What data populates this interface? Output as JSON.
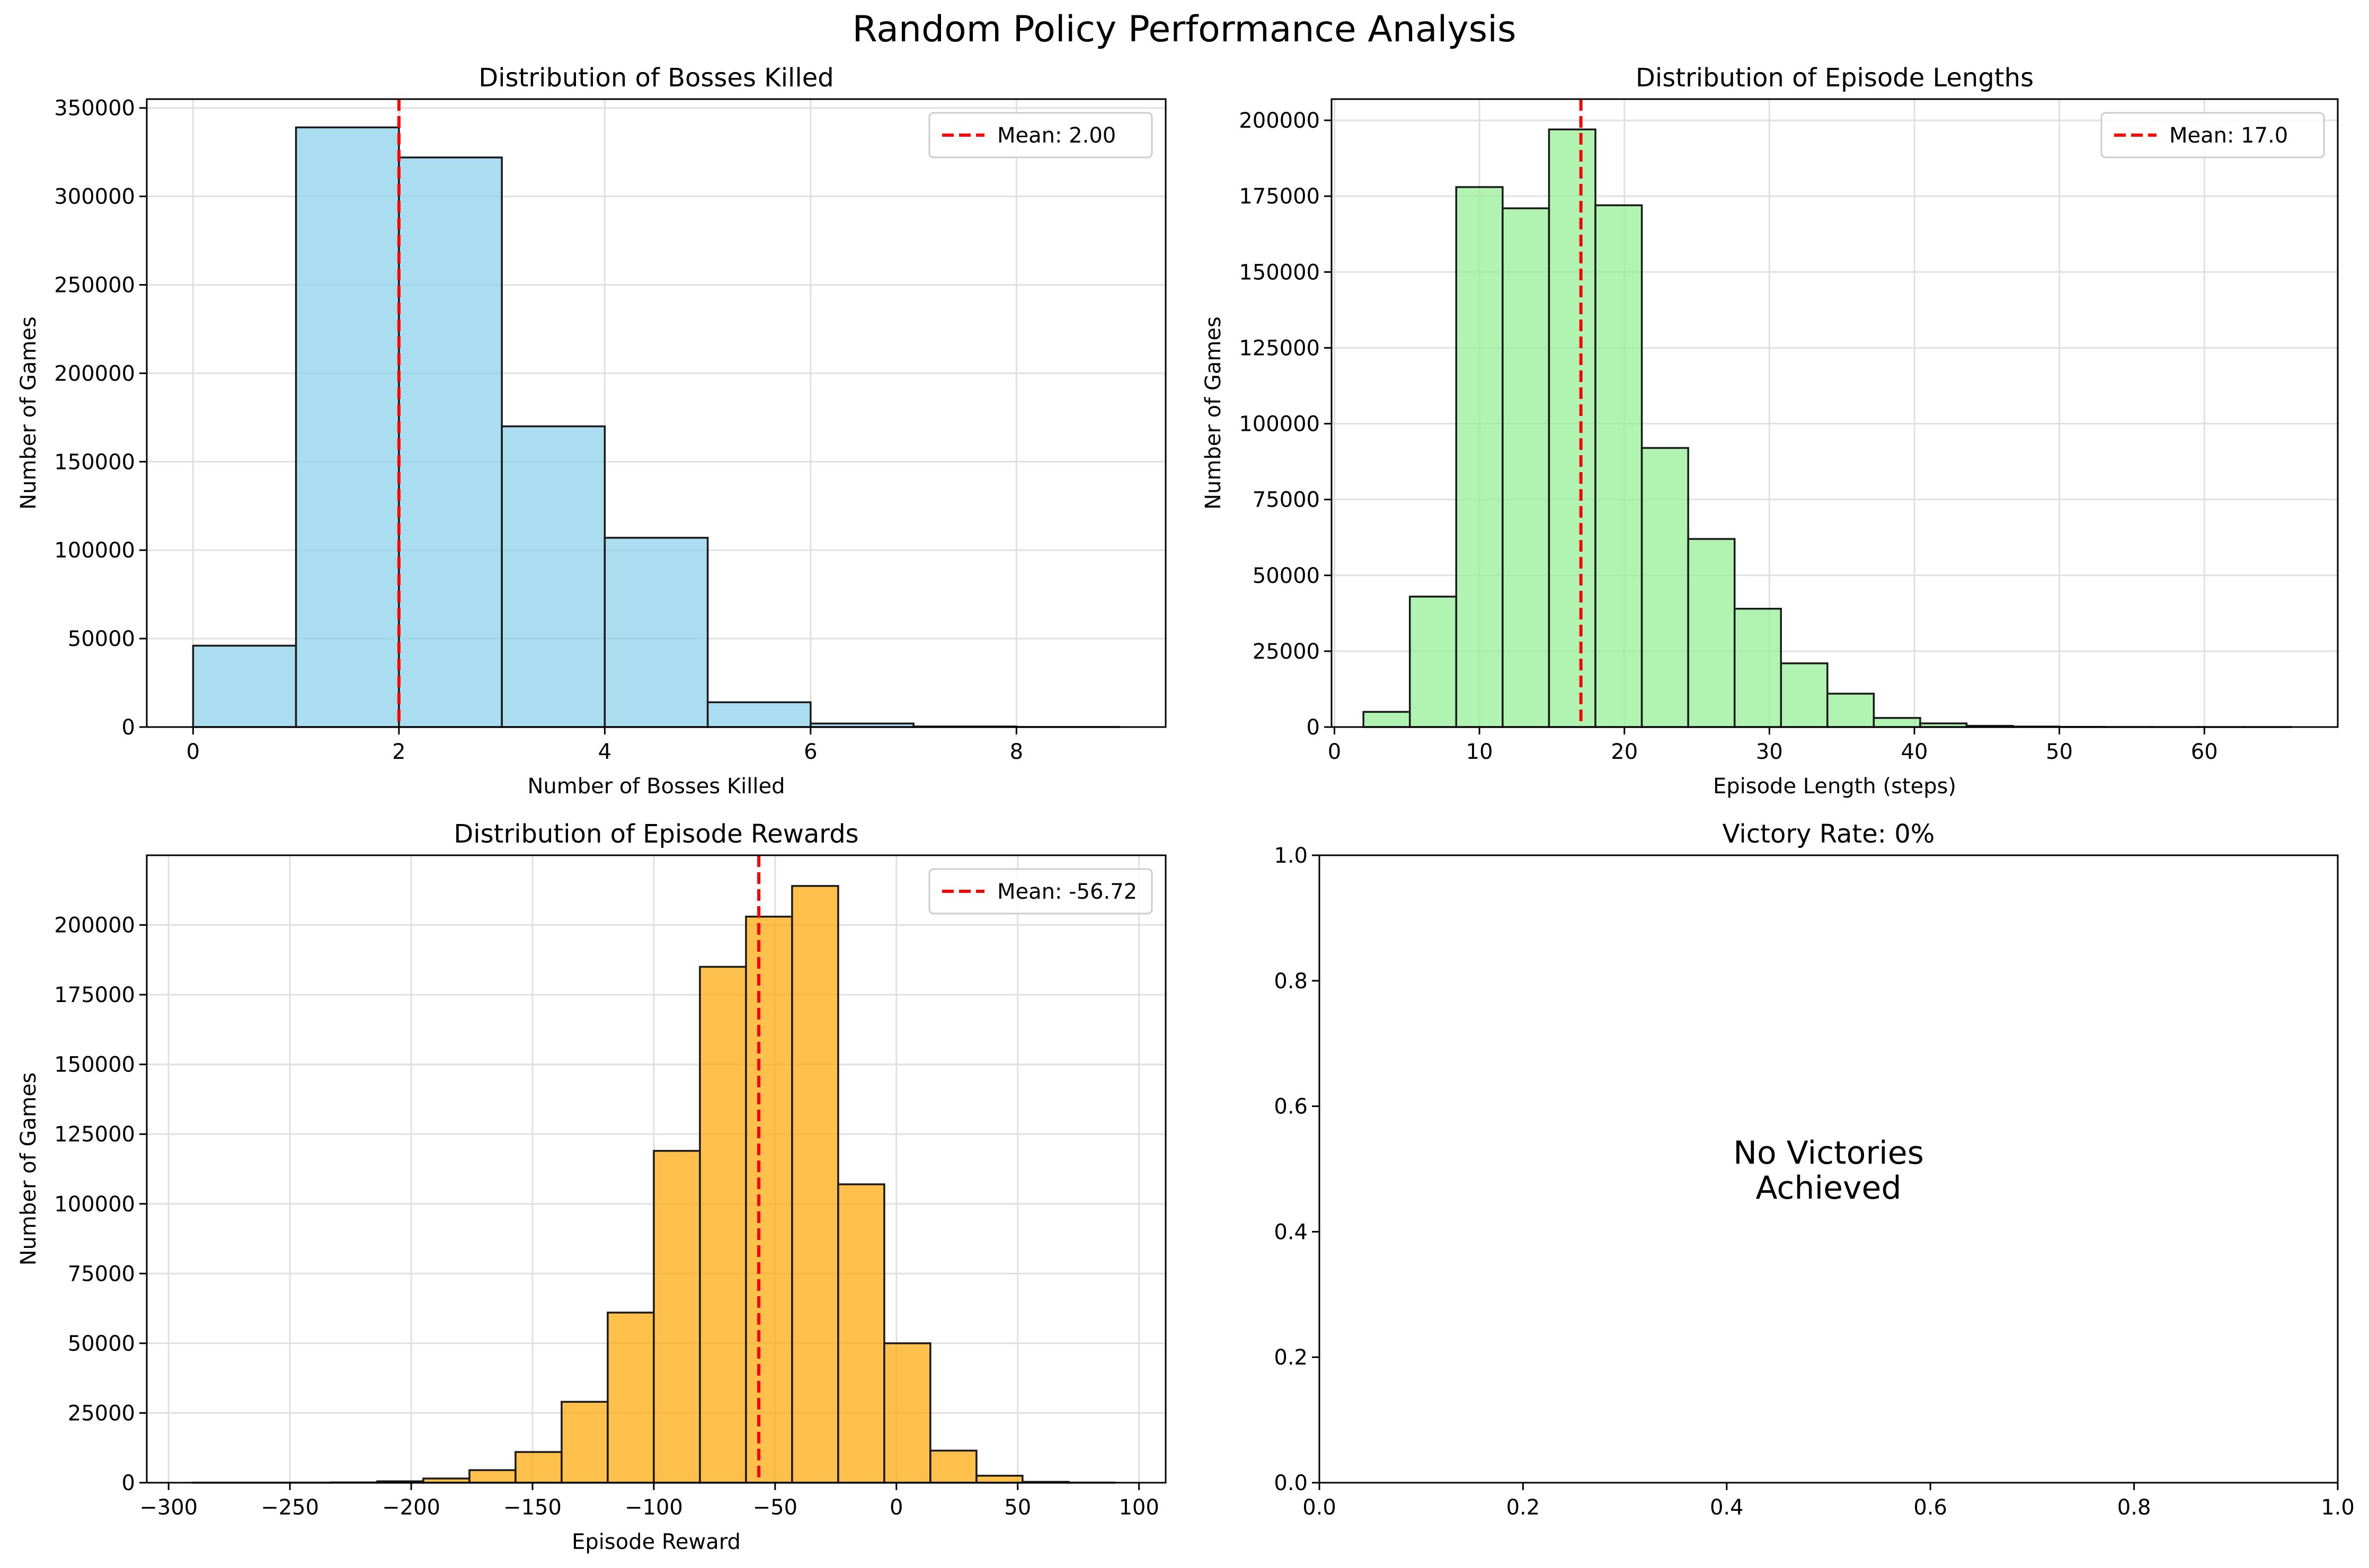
{
  "figure": {
    "title": "Random Policy Performance Analysis"
  },
  "colors": {
    "mean_line": "#ff0000",
    "bar_edge": "#1a1a1a",
    "grid": "#e0e0e0"
  },
  "chart_data": [
    {
      "id": "bosses",
      "type": "bar",
      "title": "Distribution of Bosses Killed",
      "xlabel": "Number of Bosses Killed",
      "ylabel": "Number of Games",
      "color": "#87ceeb",
      "bar_alpha": 0.7,
      "xlim": [
        -0.45,
        9.45
      ],
      "ylim": [
        0,
        355000
      ],
      "xticks": [
        0,
        2,
        4,
        6,
        8
      ],
      "yticks": [
        0,
        50000,
        100000,
        150000,
        200000,
        250000,
        300000,
        350000
      ],
      "bins": [
        {
          "x0": 0,
          "x1": 1,
          "count": 46000
        },
        {
          "x0": 1,
          "x1": 2,
          "count": 339000
        },
        {
          "x0": 2,
          "x1": 3,
          "count": 322000
        },
        {
          "x0": 3,
          "x1": 4,
          "count": 170000
        },
        {
          "x0": 4,
          "x1": 5,
          "count": 107000
        },
        {
          "x0": 5,
          "x1": 6,
          "count": 14000
        },
        {
          "x0": 6,
          "x1": 7,
          "count": 2000
        },
        {
          "x0": 7,
          "x1": 8,
          "count": 300
        },
        {
          "x0": 8,
          "x1": 9,
          "count": 50
        }
      ],
      "mean": 2.0,
      "mean_label": "Mean: 2.00",
      "legend_loc": "upper right"
    },
    {
      "id": "lengths",
      "type": "bar",
      "title": "Distribution of Episode Lengths",
      "xlabel": "Episode Length (steps)",
      "ylabel": "Number of Games",
      "color": "#90ee90",
      "bar_alpha": 0.7,
      "xlim": [
        -0.2,
        69.2
      ],
      "ylim": [
        0,
        207000
      ],
      "xticks": [
        0,
        10,
        20,
        30,
        40,
        50,
        60
      ],
      "yticks": [
        0,
        25000,
        50000,
        75000,
        100000,
        125000,
        150000,
        175000,
        200000
      ],
      "bins": [
        {
          "x0": 2.0,
          "x1": 5.2,
          "count": 5000
        },
        {
          "x0": 5.2,
          "x1": 8.4,
          "count": 43000
        },
        {
          "x0": 8.4,
          "x1": 11.6,
          "count": 178000
        },
        {
          "x0": 11.6,
          "x1": 14.8,
          "count": 171000
        },
        {
          "x0": 14.8,
          "x1": 18.0,
          "count": 197000
        },
        {
          "x0": 18.0,
          "x1": 21.2,
          "count": 172000
        },
        {
          "x0": 21.2,
          "x1": 24.4,
          "count": 92000
        },
        {
          "x0": 24.4,
          "x1": 27.6,
          "count": 62000
        },
        {
          "x0": 27.6,
          "x1": 30.8,
          "count": 39000
        },
        {
          "x0": 30.8,
          "x1": 34.0,
          "count": 21000
        },
        {
          "x0": 34.0,
          "x1": 37.2,
          "count": 11000
        },
        {
          "x0": 37.2,
          "x1": 40.4,
          "count": 3000
        },
        {
          "x0": 40.4,
          "x1": 43.6,
          "count": 1200
        },
        {
          "x0": 43.6,
          "x1": 46.8,
          "count": 400
        },
        {
          "x0": 46.8,
          "x1": 50.0,
          "count": 150
        },
        {
          "x0": 50.0,
          "x1": 53.2,
          "count": 50
        },
        {
          "x0": 53.2,
          "x1": 56.4,
          "count": 20
        },
        {
          "x0": 56.4,
          "x1": 59.6,
          "count": 10
        },
        {
          "x0": 59.6,
          "x1": 62.8,
          "count": 5
        },
        {
          "x0": 62.8,
          "x1": 66.0,
          "count": 2
        }
      ],
      "mean": 17.0,
      "mean_label": "Mean: 17.0",
      "legend_loc": "upper right"
    },
    {
      "id": "rewards",
      "type": "bar",
      "title": "Distribution of Episode Rewards",
      "xlabel": "Episode Reward",
      "ylabel": "Number of Games",
      "color": "#ffa500",
      "bar_alpha": 0.7,
      "xlim": [
        -309,
        111
      ],
      "ylim": [
        0,
        225000
      ],
      "xticks": [
        -300,
        -250,
        -200,
        -150,
        -100,
        -50,
        0,
        50,
        100
      ],
      "yticks": [
        0,
        25000,
        50000,
        75000,
        100000,
        125000,
        150000,
        175000,
        200000
      ],
      "bins": [
        {
          "x0": -290,
          "x1": -271,
          "count": 10
        },
        {
          "x0": -271,
          "x1": -252,
          "count": 10
        },
        {
          "x0": -252,
          "x1": -233,
          "count": 30
        },
        {
          "x0": -233,
          "x1": -214,
          "count": 100
        },
        {
          "x0": -214,
          "x1": -195,
          "count": 500
        },
        {
          "x0": -195,
          "x1": -176,
          "count": 1500
        },
        {
          "x0": -176,
          "x1": -157,
          "count": 4500
        },
        {
          "x0": -157,
          "x1": -138,
          "count": 11000
        },
        {
          "x0": -138,
          "x1": -119,
          "count": 29000
        },
        {
          "x0": -119,
          "x1": -100,
          "count": 61000
        },
        {
          "x0": -100,
          "x1": -81,
          "count": 119000
        },
        {
          "x0": -81,
          "x1": -62,
          "count": 185000
        },
        {
          "x0": -62,
          "x1": -43,
          "count": 203000
        },
        {
          "x0": -43,
          "x1": -24,
          "count": 214000
        },
        {
          "x0": -24,
          "x1": -5,
          "count": 107000
        },
        {
          "x0": -5,
          "x1": 14,
          "count": 50000
        },
        {
          "x0": 14,
          "x1": 33,
          "count": 11500
        },
        {
          "x0": 33,
          "x1": 52,
          "count": 2500
        },
        {
          "x0": 52,
          "x1": 71,
          "count": 300
        },
        {
          "x0": 71,
          "x1": 90,
          "count": 50
        }
      ],
      "mean": -56.72,
      "mean_label": "Mean: -56.72",
      "legend_loc": "upper right"
    },
    {
      "id": "victory",
      "type": "bar",
      "title": "Victory Rate: 0%",
      "xlim": [
        0,
        1
      ],
      "ylim": [
        0,
        1
      ],
      "xticks": [
        0.0,
        0.2,
        0.4,
        0.6,
        0.8,
        1.0
      ],
      "yticks": [
        0.0,
        0.2,
        0.4,
        0.6,
        0.8,
        1.0
      ],
      "message_lines": [
        "No Victories",
        "Achieved"
      ]
    }
  ]
}
